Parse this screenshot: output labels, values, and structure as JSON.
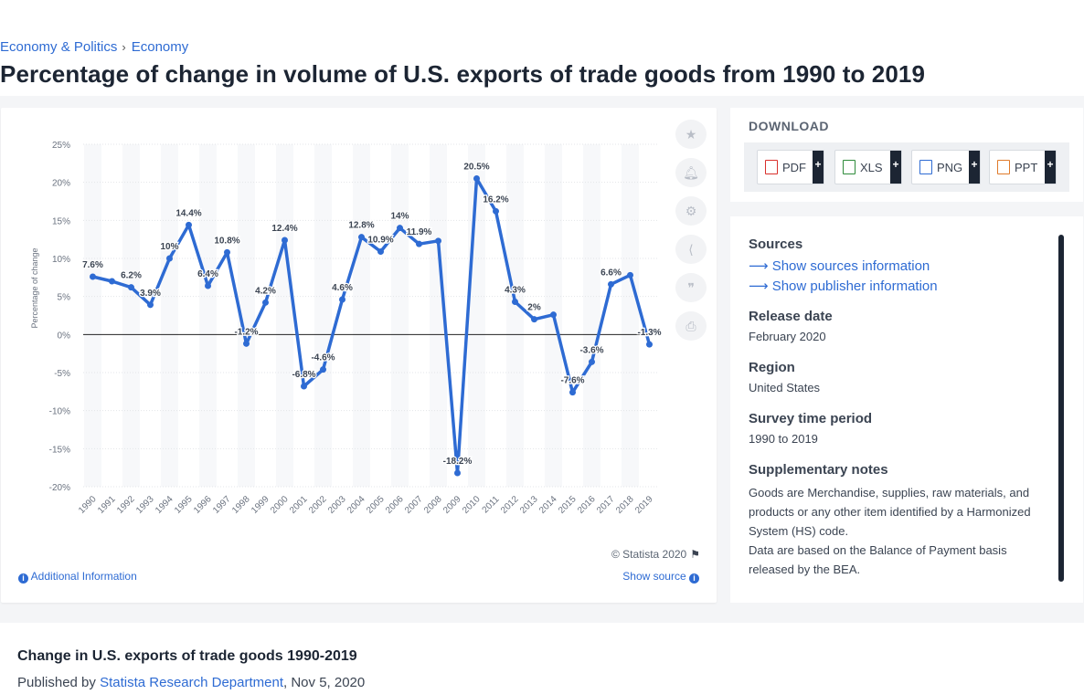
{
  "breadcrumb": {
    "item1": "Economy & Politics",
    "sep": "›",
    "item2": "Economy"
  },
  "page_title": "Percentage of change in volume of U.S. exports of trade goods from 1990 to 2019",
  "chart_tools": [
    "star-icon",
    "bell-icon",
    "gear-icon",
    "share-icon",
    "quote-icon",
    "print-icon"
  ],
  "chart_footer": {
    "copyright": "© Statista 2020",
    "additional_info": "Additional Information",
    "show_source": "Show source"
  },
  "download": {
    "title": "DOWNLOAD",
    "buttons": [
      {
        "label": "PDF",
        "plus": "+",
        "color": "#d9302c"
      },
      {
        "label": "XLS",
        "plus": "+",
        "color": "#2e8b3a"
      },
      {
        "label": "PNG",
        "plus": "+",
        "color": "#2e6bd3"
      },
      {
        "label": "PPT",
        "plus": "+",
        "color": "#e07a2a"
      }
    ]
  },
  "info": {
    "sources_label": "Sources",
    "show_sources": "Show sources information",
    "show_publisher": "Show publisher information",
    "release_label": "Release date",
    "release_value": "February 2020",
    "region_label": "Region",
    "region_value": "United States",
    "survey_label": "Survey time period",
    "survey_value": "1990 to 2019",
    "notes_label": "Supplementary notes",
    "notes_1": "Goods are Merchandise, supplies, raw materials, and products or any other item identified by a Harmonized System (HS) code.",
    "notes_2": "Data are based on the Balance of Payment basis released by the BEA."
  },
  "bottom": {
    "title": "Change in U.S. exports of trade goods 1990-2019",
    "published_by": "Published by",
    "publisher": "Statista Research Department",
    "date": ", Nov 5, 2020"
  },
  "chart_data": {
    "type": "line",
    "title": "",
    "ylabel": "Percentage of change",
    "xlabel": "",
    "ylim": [
      -20,
      25
    ],
    "yticks": [
      "25%",
      "20%",
      "15%",
      "10%",
      "5%",
      "0%",
      "-5%",
      "-10%",
      "-15%",
      "-20%"
    ],
    "grid": true,
    "line_color": "#2e6bd3",
    "x": [
      "1990",
      "1991",
      "1992",
      "1993",
      "1994",
      "1995",
      "1996",
      "1997",
      "1998",
      "1999",
      "2000",
      "2001",
      "2002",
      "2003",
      "2004",
      "2005",
      "2006",
      "2007",
      "2008",
      "2009",
      "2010",
      "2011",
      "2012",
      "2013",
      "2014",
      "2015",
      "2016",
      "2017",
      "2018",
      "2019"
    ],
    "values": [
      7.6,
      7,
      6.2,
      3.9,
      10,
      14.4,
      6.4,
      10.8,
      -1.2,
      4.2,
      12.4,
      -6.8,
      -4.6,
      4.6,
      12.8,
      10.9,
      14,
      11.9,
      12.3,
      -18.2,
      20.5,
      16.2,
      4.3,
      2,
      2.6,
      -7.6,
      -3.6,
      6.6,
      7.8,
      -1.3
    ],
    "labels": [
      "7.6%",
      "",
      "6.2%",
      "3.9%",
      "10%",
      "14.4%",
      "6.4%",
      "10.8%",
      "-1.2%",
      "4.2%",
      "12.4%",
      "-6.8%",
      "-4.6%",
      "4.6%",
      "12.8%",
      "10.9%",
      "14%",
      "11.9%",
      "",
      "-18.2%",
      "20.5%",
      "16.2%",
      "4.3%",
      "2%",
      "",
      "-7.6%",
      "-3.6%",
      "6.6%",
      "",
      "-1.3%"
    ]
  }
}
